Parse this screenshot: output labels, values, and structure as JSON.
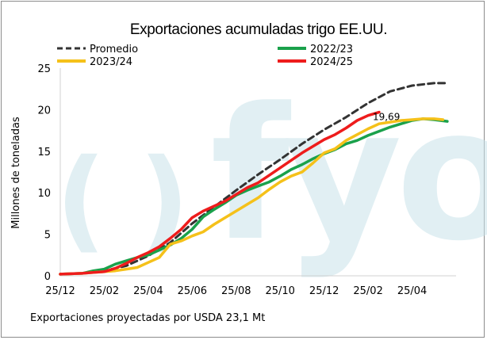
{
  "colors": {
    "promedio": "#333333",
    "s2022_23": "#1aa14b",
    "s2023_24": "#f5c11a",
    "s2024_25": "#ee1c1c",
    "axis": "#d0d0d0",
    "watermark": "#c9e3ea"
  },
  "watermark": {
    "text": "fyo"
  },
  "footnote": "Exportaciones proyectadas por USDA 23,1 Mt",
  "chart_data": {
    "type": "line",
    "title": "Exportaciones acumuladas trigo EE.UU.",
    "xlabel": "",
    "ylabel": "Millones de toneladas",
    "ylim": [
      0,
      25
    ],
    "yticks": [
      0,
      5,
      10,
      15,
      20,
      25
    ],
    "xlim": [
      0,
      18
    ],
    "xtick_labels": [
      "25/12",
      "25/02",
      "25/04",
      "25/06",
      "25/08",
      "25/10",
      "25/12",
      "25/02",
      "25/04"
    ],
    "xtick_positions": [
      0,
      2,
      4,
      6,
      8,
      10,
      12,
      14,
      16
    ],
    "legend": [
      "Promedio",
      "2022/23",
      "2023/24",
      "2024/25"
    ],
    "annotation": {
      "text": "19,69",
      "x": 14.5,
      "y": 19.69
    },
    "series": [
      {
        "name": "Promedio",
        "color_key": "promedio",
        "dashed": true,
        "x": [
          0,
          1,
          2,
          3,
          4,
          5,
          6,
          7,
          8,
          9,
          10,
          11,
          12,
          13,
          14,
          15,
          16,
          17,
          17.6
        ],
        "y": [
          0.2,
          0.3,
          0.6,
          1.2,
          2.4,
          4.0,
          6.3,
          8.3,
          10.3,
          12.2,
          14.0,
          15.9,
          17.6,
          19.1,
          20.8,
          22.2,
          22.9,
          23.2,
          23.2
        ]
      },
      {
        "name": "2022/23",
        "color_key": "s2022_23",
        "dashed": false,
        "x": [
          0,
          1,
          1.5,
          2,
          2.5,
          3,
          3.5,
          4,
          4.5,
          5,
          5.5,
          6,
          6.5,
          7,
          7.5,
          8,
          8.5,
          9,
          9.5,
          10,
          10.5,
          11,
          11.5,
          12,
          12.5,
          13,
          13.5,
          14,
          14.5,
          15,
          15.5,
          16,
          16.5,
          17,
          17.6
        ],
        "y": [
          0.2,
          0.3,
          0.6,
          0.8,
          1.4,
          1.8,
          2.2,
          2.5,
          3.1,
          3.7,
          4.5,
          5.6,
          7.1,
          8.0,
          8.8,
          9.7,
          10.3,
          10.8,
          11.3,
          12.0,
          12.8,
          13.4,
          14.1,
          14.7,
          15.2,
          15.9,
          16.3,
          16.9,
          17.4,
          17.9,
          18.3,
          18.7,
          18.9,
          18.8,
          18.6
        ]
      },
      {
        "name": "2023/24",
        "color_key": "s2023_24",
        "dashed": false,
        "x": [
          0,
          1,
          1.5,
          2,
          2.5,
          3,
          3.5,
          4,
          4.5,
          5,
          5.5,
          6,
          6.5,
          7,
          7.5,
          8,
          8.5,
          9,
          9.5,
          10,
          10.5,
          11,
          11.5,
          12,
          12.5,
          13,
          13.5,
          14,
          14.5,
          15,
          15.5,
          16,
          16.5,
          17,
          17.4
        ],
        "y": [
          0.2,
          0.3,
          0.4,
          0.5,
          0.6,
          0.8,
          1.0,
          1.6,
          2.2,
          3.8,
          4.2,
          4.8,
          5.3,
          6.2,
          7.0,
          7.8,
          8.6,
          9.4,
          10.4,
          11.3,
          12.0,
          12.5,
          13.6,
          14.8,
          15.3,
          16.3,
          17.0,
          17.7,
          18.3,
          18.5,
          18.7,
          18.8,
          18.9,
          18.9,
          18.8
        ]
      },
      {
        "name": "2024/25",
        "color_key": "s2024_25",
        "dashed": false,
        "x": [
          0,
          1,
          1.5,
          2,
          2.5,
          3,
          3.5,
          4,
          4.5,
          5,
          5.5,
          6,
          6.5,
          7,
          7.5,
          8,
          8.5,
          9,
          9.5,
          10,
          10.5,
          11,
          11.5,
          12,
          12.5,
          13,
          13.5,
          14,
          14.5
        ],
        "y": [
          0.2,
          0.3,
          0.4,
          0.5,
          0.9,
          1.5,
          2.2,
          2.8,
          3.5,
          4.5,
          5.6,
          7.0,
          7.8,
          8.4,
          9.0,
          9.8,
          10.6,
          11.2,
          12.1,
          13.0,
          13.9,
          14.8,
          15.6,
          16.4,
          17.0,
          17.8,
          18.7,
          19.3,
          19.69
        ]
      }
    ]
  }
}
